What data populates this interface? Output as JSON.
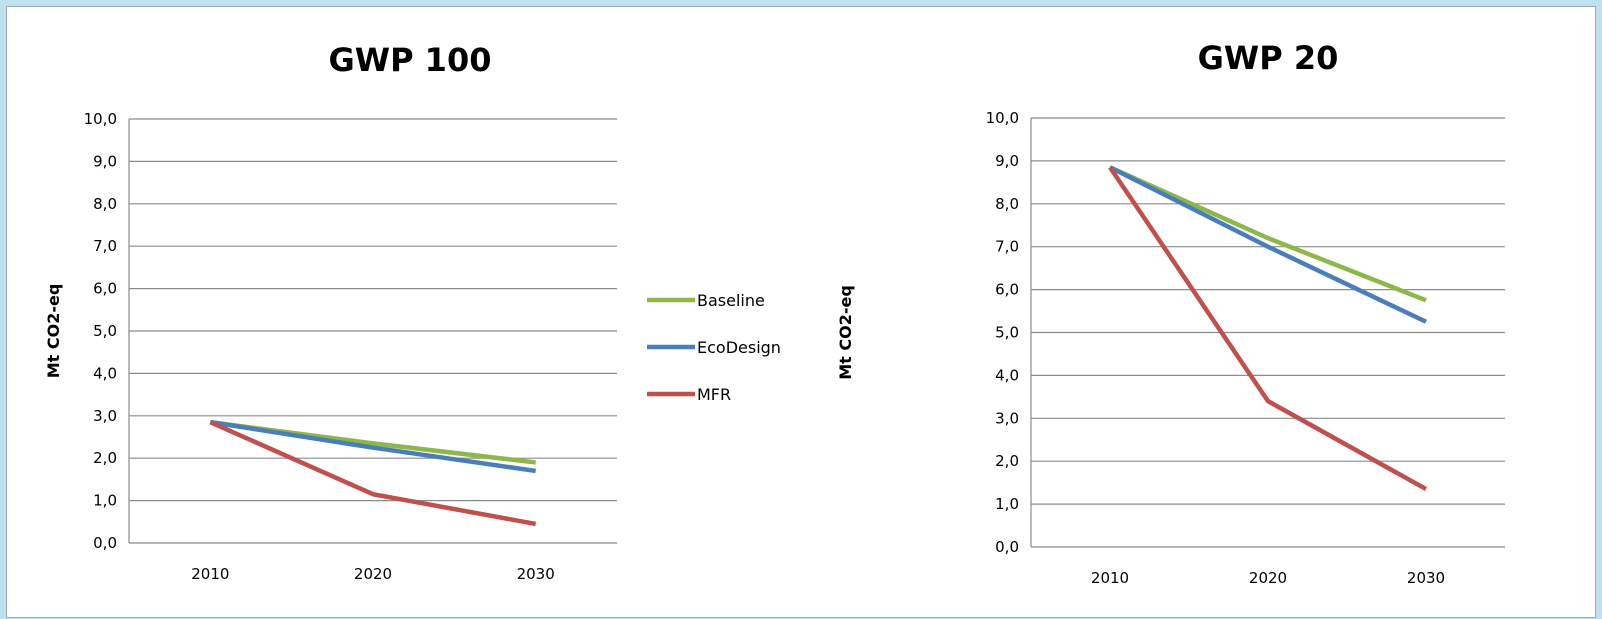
{
  "chart_data": [
    {
      "type": "line",
      "title": "GWP 100",
      "ylabel": "Mt CO2-eq",
      "xlabel": "",
      "categories": [
        "2010",
        "2020",
        "2030"
      ],
      "ylim": [
        0,
        10
      ],
      "yticks": [
        "0,0",
        "1,0",
        "2,0",
        "3,0",
        "4,0",
        "5,0",
        "6,0",
        "7,0",
        "8,0",
        "9,0",
        "10,0"
      ],
      "grid": true,
      "series": [
        {
          "name": "Baseline",
          "color": "#8cb84a",
          "values": [
            2.85,
            2.35,
            1.9
          ]
        },
        {
          "name": "EcoDesign",
          "color": "#4a7ebb",
          "values": [
            2.85,
            2.25,
            1.7
          ]
        },
        {
          "name": "MFR",
          "color": "#c0504d",
          "values": [
            2.85,
            1.15,
            0.45
          ]
        }
      ]
    },
    {
      "type": "line",
      "title": "GWP 20",
      "ylabel": "Mt CO2-eq",
      "xlabel": "",
      "categories": [
        "2010",
        "2020",
        "2030"
      ],
      "ylim": [
        0,
        10
      ],
      "yticks": [
        "0,0",
        "1,0",
        "2,0",
        "3,0",
        "4,0",
        "5,0",
        "6,0",
        "7,0",
        "8,0",
        "9,0",
        "10,0"
      ],
      "grid": true,
      "series": [
        {
          "name": "Baseline",
          "color": "#8cb84a",
          "values": [
            8.85,
            7.2,
            5.75
          ]
        },
        {
          "name": "EcoDesign",
          "color": "#4a7ebb",
          "values": [
            8.85,
            7.0,
            5.25
          ]
        },
        {
          "name": "MFR",
          "color": "#c0504d",
          "values": [
            8.85,
            3.4,
            1.35
          ]
        }
      ]
    }
  ],
  "legend": {
    "placement": "between-charts",
    "items": [
      {
        "label": "Baseline",
        "color": "#8cb84a"
      },
      {
        "label": "EcoDesign",
        "color": "#4a7ebb"
      },
      {
        "label": "MFR",
        "color": "#c0504d"
      }
    ]
  }
}
